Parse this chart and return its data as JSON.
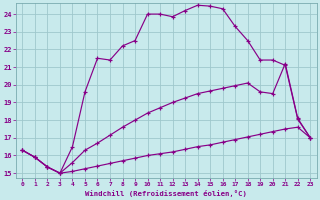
{
  "xlabel": "Windchill (Refroidissement éolien,°C)",
  "xlim": [
    -0.5,
    23.5
  ],
  "ylim": [
    14.75,
    24.6
  ],
  "xticks": [
    0,
    1,
    2,
    3,
    4,
    5,
    6,
    7,
    8,
    9,
    10,
    11,
    12,
    13,
    14,
    15,
    16,
    17,
    18,
    19,
    20,
    21,
    22,
    23
  ],
  "yticks": [
    15,
    16,
    17,
    18,
    19,
    20,
    21,
    22,
    23,
    24
  ],
  "bg_color": "#c8eaec",
  "line_color": "#880088",
  "grid_color": "#9fc8cc",
  "line1_x": [
    0,
    1,
    2,
    3,
    4,
    5,
    6,
    7,
    8,
    9,
    10,
    11,
    12,
    13,
    14,
    15,
    16,
    17,
    18,
    19,
    20,
    21,
    22,
    23
  ],
  "line1_y": [
    16.3,
    15.9,
    15.35,
    15.0,
    15.1,
    15.25,
    15.4,
    15.55,
    15.7,
    15.85,
    16.0,
    16.1,
    16.2,
    16.35,
    16.5,
    16.6,
    16.75,
    16.9,
    17.05,
    17.2,
    17.35,
    17.5,
    17.6,
    17.0
  ],
  "line2_x": [
    0,
    1,
    2,
    3,
    4,
    5,
    6,
    7,
    8,
    9,
    10,
    11,
    12,
    13,
    14,
    15,
    16,
    17,
    18,
    19,
    20,
    21,
    22,
    23
  ],
  "line2_y": [
    16.3,
    15.9,
    15.35,
    15.0,
    15.6,
    16.3,
    16.7,
    17.15,
    17.6,
    18.0,
    18.4,
    18.7,
    19.0,
    19.25,
    19.5,
    19.65,
    19.8,
    19.95,
    20.1,
    19.6,
    19.5,
    21.2,
    18.1,
    17.0
  ],
  "line3_x": [
    0,
    1,
    2,
    3,
    4,
    5,
    6,
    7,
    8,
    9,
    10,
    11,
    12,
    13,
    14,
    15,
    16,
    17,
    18,
    19,
    20,
    21,
    22,
    23
  ],
  "line3_y": [
    16.3,
    15.9,
    15.35,
    15.0,
    16.5,
    19.6,
    21.5,
    21.4,
    22.2,
    22.5,
    24.0,
    24.0,
    23.85,
    24.2,
    24.5,
    24.45,
    24.3,
    23.3,
    22.5,
    21.4,
    21.4,
    21.1,
    18.05,
    17.0
  ]
}
